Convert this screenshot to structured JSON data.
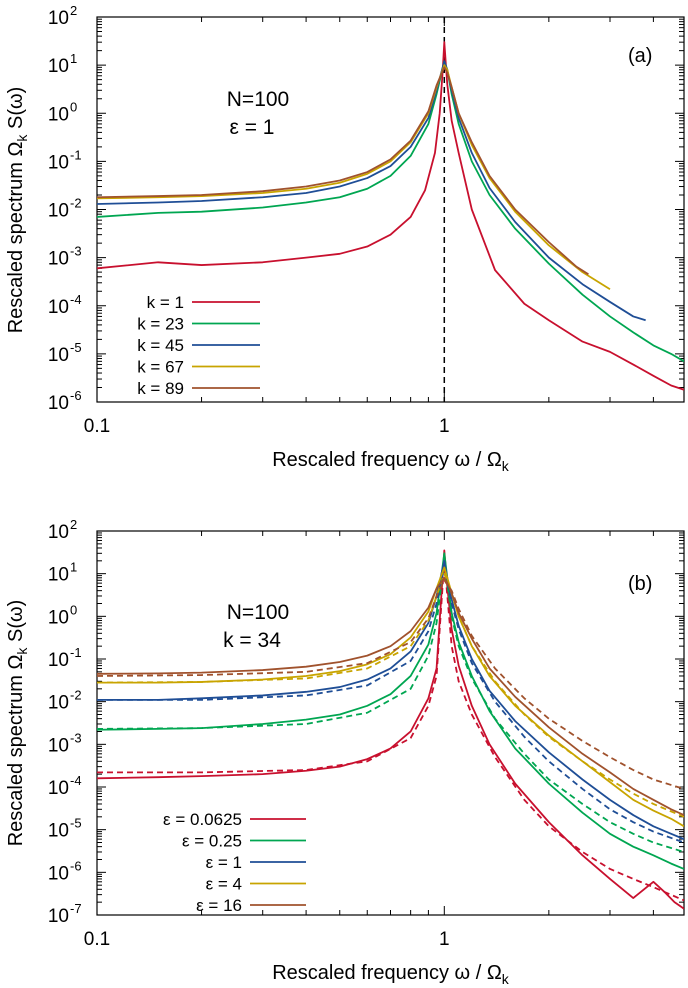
{
  "chart_data": [
    {
      "type": "line",
      "panel_label": "(a)",
      "annotations": [
        "N=100",
        "ε = 1"
      ],
      "xlabel": "Rescaled frequency ω / Ω",
      "xlabel_sub": "k",
      "ylabel_a": "Rescaled spectrum  Ω",
      "ylabel_sub": "k",
      "ylabel_b": " S(ω)",
      "x_scale": "log",
      "y_scale": "log",
      "xlim": [
        0.1,
        4.9
      ],
      "ylim": [
        1e-06,
        100
      ],
      "x_ticks": [
        {
          "value": 0.1,
          "label": "0.1"
        },
        {
          "value": 1,
          "label": "1"
        }
      ],
      "y_ticks": [
        {
          "value": 1e-06,
          "base": "10",
          "exp": "-6"
        },
        {
          "value": 1e-05,
          "base": "10",
          "exp": "-5"
        },
        {
          "value": 0.0001,
          "base": "10",
          "exp": "-4"
        },
        {
          "value": 0.001,
          "base": "10",
          "exp": "-3"
        },
        {
          "value": 0.01,
          "base": "10",
          "exp": "-2"
        },
        {
          "value": 0.1,
          "base": "10",
          "exp": "-1"
        },
        {
          "value": 1,
          "base": "10",
          "exp": "0"
        },
        {
          "value": 10,
          "base": "10",
          "exp": "1"
        },
        {
          "value": 100,
          "base": "10",
          "exp": "2"
        }
      ],
      "vline": {
        "x": 1,
        "style": "dashed"
      },
      "legend_position": "bottom-left",
      "series": [
        {
          "name": "k = 1",
          "color": "#c8102e",
          "x": [
            0.1,
            0.15,
            0.2,
            0.3,
            0.4,
            0.5,
            0.6,
            0.7,
            0.8,
            0.88,
            0.94,
            0.97,
            0.99,
            1.0,
            1.02,
            1.05,
            1.1,
            1.2,
            1.4,
            1.7,
            2.0,
            2.5,
            3.0,
            3.5,
            4.0,
            4.5,
            4.9
          ],
          "y": [
            0.0006,
            0.0008,
            0.0007,
            0.0008,
            0.001,
            0.0012,
            0.0017,
            0.003,
            0.007,
            0.025,
            0.15,
            1.0,
            8,
            30,
            4,
            0.7,
            0.15,
            0.01,
            0.00055,
            0.00011,
            5e-05,
            1.8e-05,
            1.1e-05,
            6e-06,
            3.5e-06,
            2.2e-06,
            1.8e-06
          ]
        },
        {
          "name": "k = 23",
          "color": "#00a651",
          "x": [
            0.1,
            0.15,
            0.2,
            0.3,
            0.4,
            0.5,
            0.6,
            0.7,
            0.8,
            0.9,
            0.95,
            1.0,
            1.02,
            1.05,
            1.1,
            1.2,
            1.35,
            1.6,
            2.0,
            2.5,
            3.0,
            3.5,
            4.0,
            4.5,
            4.9
          ],
          "y": [
            0.007,
            0.0085,
            0.009,
            0.011,
            0.014,
            0.018,
            0.027,
            0.05,
            0.13,
            0.6,
            2.5,
            12,
            8,
            2.5,
            0.6,
            0.1,
            0.02,
            0.004,
            0.00075,
            0.00017,
            6e-05,
            2.8e-05,
            1.5e-05,
            1e-05,
            7e-06
          ]
        },
        {
          "name": "k = 45",
          "color": "#1f4e96",
          "x": [
            0.1,
            0.15,
            0.2,
            0.3,
            0.4,
            0.5,
            0.6,
            0.7,
            0.8,
            0.9,
            0.95,
            1.0,
            1.02,
            1.05,
            1.1,
            1.2,
            1.35,
            1.6,
            2.0,
            2.5,
            3.0,
            3.5,
            3.8
          ],
          "y": [
            0.013,
            0.014,
            0.015,
            0.018,
            0.022,
            0.03,
            0.045,
            0.08,
            0.2,
            0.8,
            3,
            12,
            8,
            3,
            0.8,
            0.15,
            0.028,
            0.0055,
            0.001,
            0.00028,
            0.00012,
            6e-05,
            5e-05
          ]
        },
        {
          "name": "k = 67",
          "color": "#c8a400",
          "x": [
            0.1,
            0.15,
            0.2,
            0.3,
            0.4,
            0.5,
            0.6,
            0.7,
            0.8,
            0.9,
            0.95,
            1.0,
            1.02,
            1.05,
            1.1,
            1.2,
            1.35,
            1.6,
            2.0,
            2.5,
            3.0
          ],
          "y": [
            0.017,
            0.018,
            0.019,
            0.022,
            0.027,
            0.036,
            0.055,
            0.1,
            0.25,
            1.0,
            3.5,
            10,
            8,
            3.5,
            1.0,
            0.22,
            0.045,
            0.009,
            0.0018,
            0.0005,
            0.00022
          ]
        },
        {
          "name": "k = 89",
          "color": "#a0522d",
          "x": [
            0.1,
            0.15,
            0.2,
            0.3,
            0.4,
            0.5,
            0.6,
            0.7,
            0.8,
            0.9,
            0.95,
            1.0,
            1.02,
            1.05,
            1.1,
            1.2,
            1.35,
            1.6,
            2.0,
            2.4,
            2.6
          ],
          "y": [
            0.018,
            0.019,
            0.02,
            0.024,
            0.03,
            0.04,
            0.06,
            0.11,
            0.27,
            1.1,
            3.8,
            9,
            7,
            3.5,
            1.0,
            0.25,
            0.05,
            0.01,
            0.0021,
            0.00065,
            0.00045
          ]
        }
      ]
    },
    {
      "type": "line",
      "panel_label": "(b)",
      "annotations": [
        "N=100",
        "k = 34"
      ],
      "xlabel": "Rescaled frequency ω / Ω",
      "xlabel_sub": "k",
      "ylabel_a": "Rescaled spectrum  Ω",
      "ylabel_sub": "k",
      "ylabel_b": " S(ω)",
      "x_scale": "log",
      "y_scale": "log",
      "xlim": [
        0.1,
        4.9
      ],
      "ylim": [
        1e-07,
        100
      ],
      "x_ticks": [
        {
          "value": 0.1,
          "label": "0.1"
        },
        {
          "value": 1,
          "label": "1"
        }
      ],
      "y_ticks": [
        {
          "value": 1e-07,
          "base": "10",
          "exp": "-7"
        },
        {
          "value": 1e-06,
          "base": "10",
          "exp": "-6"
        },
        {
          "value": 1e-05,
          "base": "10",
          "exp": "-5"
        },
        {
          "value": 0.0001,
          "base": "10",
          "exp": "-4"
        },
        {
          "value": 0.001,
          "base": "10",
          "exp": "-3"
        },
        {
          "value": 0.01,
          "base": "10",
          "exp": "-2"
        },
        {
          "value": 0.1,
          "base": "10",
          "exp": "-1"
        },
        {
          "value": 1,
          "base": "10",
          "exp": "0"
        },
        {
          "value": 10,
          "base": "10",
          "exp": "1"
        },
        {
          "value": 100,
          "base": "10",
          "exp": "2"
        }
      ],
      "legend_position": "bottom-left",
      "series": [
        {
          "name": "ε = 0.0625",
          "color": "#c8102e",
          "dashed": false,
          "x": [
            0.1,
            0.15,
            0.2,
            0.3,
            0.4,
            0.5,
            0.6,
            0.7,
            0.8,
            0.9,
            0.95,
            1.0,
            1.02,
            1.05,
            1.1,
            1.2,
            1.35,
            1.6,
            2.0,
            2.5,
            3.0,
            3.5,
            4.0,
            4.3,
            4.6,
            4.9
          ],
          "y": [
            0.00016,
            0.00017,
            0.00018,
            0.0002,
            0.00024,
            0.0003,
            0.00045,
            0.0008,
            0.002,
            0.012,
            0.06,
            35,
            5,
            0.5,
            0.07,
            0.008,
            0.001,
            0.00012,
            1.5e-05,
            2.5e-06,
            7e-07,
            2.5e-07,
            6e-07,
            3.5e-07,
            2e-07,
            1.4e-07
          ]
        },
        {
          "name": "ε = 0.0625 fit",
          "color": "#c8102e",
          "dashed": true,
          "x": [
            0.1,
            0.2,
            0.4,
            0.6,
            0.8,
            0.9,
            0.95,
            1.0,
            1.05,
            1.1,
            1.2,
            1.4,
            1.7,
            2.0,
            2.5,
            3.0,
            3.5,
            4.0,
            4.9
          ],
          "y": [
            0.00022,
            0.00022,
            0.00025,
            0.0004,
            0.0014,
            0.008,
            0.04,
            20,
            0.2,
            0.03,
            0.005,
            0.0005,
            5e-05,
            1.2e-05,
            3e-06,
            1.2e-06,
            7e-07,
            4.5e-07,
            2.2e-07
          ]
        },
        {
          "name": "ε = 0.25",
          "color": "#00a651",
          "dashed": false,
          "x": [
            0.1,
            0.15,
            0.2,
            0.3,
            0.4,
            0.5,
            0.6,
            0.7,
            0.8,
            0.9,
            0.95,
            1.0,
            1.02,
            1.05,
            1.1,
            1.2,
            1.35,
            1.6,
            2.0,
            2.5,
            3.0,
            3.5,
            4.0,
            4.5,
            4.9
          ],
          "y": [
            0.0022,
            0.0023,
            0.0024,
            0.003,
            0.0038,
            0.005,
            0.008,
            0.015,
            0.04,
            0.22,
            1.2,
            30,
            8,
            1.2,
            0.25,
            0.04,
            0.006,
            0.0008,
            0.00012,
            2.5e-05,
            8e-06,
            4e-06,
            2.5e-06,
            1.6e-06,
            1.2e-06
          ]
        },
        {
          "name": "ε = 0.25 fit",
          "color": "#00a651",
          "dashed": true,
          "x": [
            0.1,
            0.2,
            0.4,
            0.6,
            0.8,
            0.9,
            0.95,
            1.0,
            1.05,
            1.1,
            1.2,
            1.4,
            1.7,
            2.0,
            2.5,
            3.0,
            3.5,
            4.0,
            4.9
          ],
          "y": [
            0.0023,
            0.0024,
            0.003,
            0.0055,
            0.02,
            0.12,
            0.7,
            20,
            1.0,
            0.2,
            0.035,
            0.004,
            0.0006,
            0.00015,
            4e-05,
            1.5e-05,
            8e-06,
            5e-06,
            3e-06
          ]
        },
        {
          "name": "ε = 1",
          "color": "#1f4e96",
          "dashed": false,
          "x": [
            0.1,
            0.15,
            0.2,
            0.3,
            0.4,
            0.5,
            0.6,
            0.7,
            0.8,
            0.9,
            0.95,
            1.0,
            1.02,
            1.05,
            1.1,
            1.2,
            1.35,
            1.6,
            2.0,
            2.5,
            3.0,
            3.5,
            4.0,
            4.5,
            4.9
          ],
          "y": [
            0.011,
            0.011,
            0.012,
            0.014,
            0.017,
            0.022,
            0.033,
            0.06,
            0.15,
            0.7,
            3,
            20,
            8,
            2.5,
            0.6,
            0.1,
            0.018,
            0.0035,
            0.00065,
            0.00015,
            5e-05,
            2.2e-05,
            1.2e-05,
            8e-06,
            6e-06
          ]
        },
        {
          "name": "ε = 1 fit",
          "color": "#1f4e96",
          "dashed": true,
          "x": [
            0.1,
            0.2,
            0.4,
            0.6,
            0.8,
            0.9,
            0.95,
            1.0,
            1.05,
            1.1,
            1.2,
            1.4,
            1.7,
            2.0,
            2.5,
            3.0,
            3.5,
            4.0,
            4.9
          ],
          "y": [
            0.011,
            0.011,
            0.014,
            0.024,
            0.09,
            0.45,
            2,
            15,
            2,
            0.5,
            0.08,
            0.01,
            0.0015,
            0.0004,
            9e-05,
            3e-05,
            1.5e-05,
            9e-06,
            5e-06
          ]
        },
        {
          "name": "ε = 4",
          "color": "#c8a400",
          "dashed": false,
          "x": [
            0.1,
            0.15,
            0.2,
            0.3,
            0.4,
            0.5,
            0.6,
            0.7,
            0.8,
            0.9,
            0.95,
            1.0,
            1.02,
            1.05,
            1.1,
            1.2,
            1.35,
            1.6,
            2.0,
            2.5,
            3.0,
            3.5,
            4.0,
            4.5,
            4.9
          ],
          "y": [
            0.028,
            0.028,
            0.029,
            0.033,
            0.04,
            0.052,
            0.075,
            0.13,
            0.32,
            1.3,
            4.5,
            14,
            8,
            3.5,
            1.0,
            0.2,
            0.04,
            0.008,
            0.0016,
            0.0004,
            0.00013,
            5e-05,
            2.8e-05,
            1.8e-05,
            1.2e-05
          ]
        },
        {
          "name": "ε = 4 fit",
          "color": "#c8a400",
          "dashed": true,
          "x": [
            0.1,
            0.2,
            0.4,
            0.6,
            0.8,
            0.9,
            0.95,
            1.0,
            1.05,
            1.1,
            1.2,
            1.4,
            1.7,
            2.0,
            2.5,
            3.0,
            3.5,
            4.0,
            4.9
          ],
          "y": [
            0.028,
            0.029,
            0.035,
            0.06,
            0.2,
            0.8,
            3,
            10,
            3.5,
            1.0,
            0.2,
            0.03,
            0.005,
            0.0015,
            0.0004,
            0.00015,
            7e-05,
            4e-05,
            2e-05
          ]
        },
        {
          "name": "ε = 16",
          "color": "#a0522d",
          "dashed": false,
          "x": [
            0.1,
            0.15,
            0.2,
            0.3,
            0.4,
            0.5,
            0.6,
            0.7,
            0.8,
            0.9,
            0.95,
            1.0,
            1.02,
            1.05,
            1.1,
            1.2,
            1.35,
            1.6,
            2.0,
            2.5,
            3.0,
            3.5,
            4.0,
            4.5,
            4.9
          ],
          "y": [
            0.045,
            0.046,
            0.048,
            0.055,
            0.066,
            0.085,
            0.12,
            0.2,
            0.45,
            1.6,
            4.5,
            8,
            6,
            3.5,
            1.2,
            0.3,
            0.06,
            0.013,
            0.0025,
            0.0006,
            0.00022,
            9e-05,
            5e-05,
            3e-05,
            2.2e-05
          ]
        },
        {
          "name": "ε = 16 fit",
          "color": "#a0522d",
          "dashed": true,
          "x": [
            0.1,
            0.2,
            0.4,
            0.6,
            0.8,
            0.9,
            0.95,
            1.0,
            1.05,
            1.1,
            1.2,
            1.4,
            1.7,
            2.0,
            2.5,
            3.0,
            3.5,
            4.0,
            4.9
          ],
          "y": [
            0.04,
            0.042,
            0.05,
            0.08,
            0.25,
            0.9,
            3,
            7,
            4,
            1.5,
            0.35,
            0.06,
            0.012,
            0.004,
            0.0012,
            0.0005,
            0.00025,
            0.00015,
            9e-05
          ]
        }
      ]
    }
  ]
}
